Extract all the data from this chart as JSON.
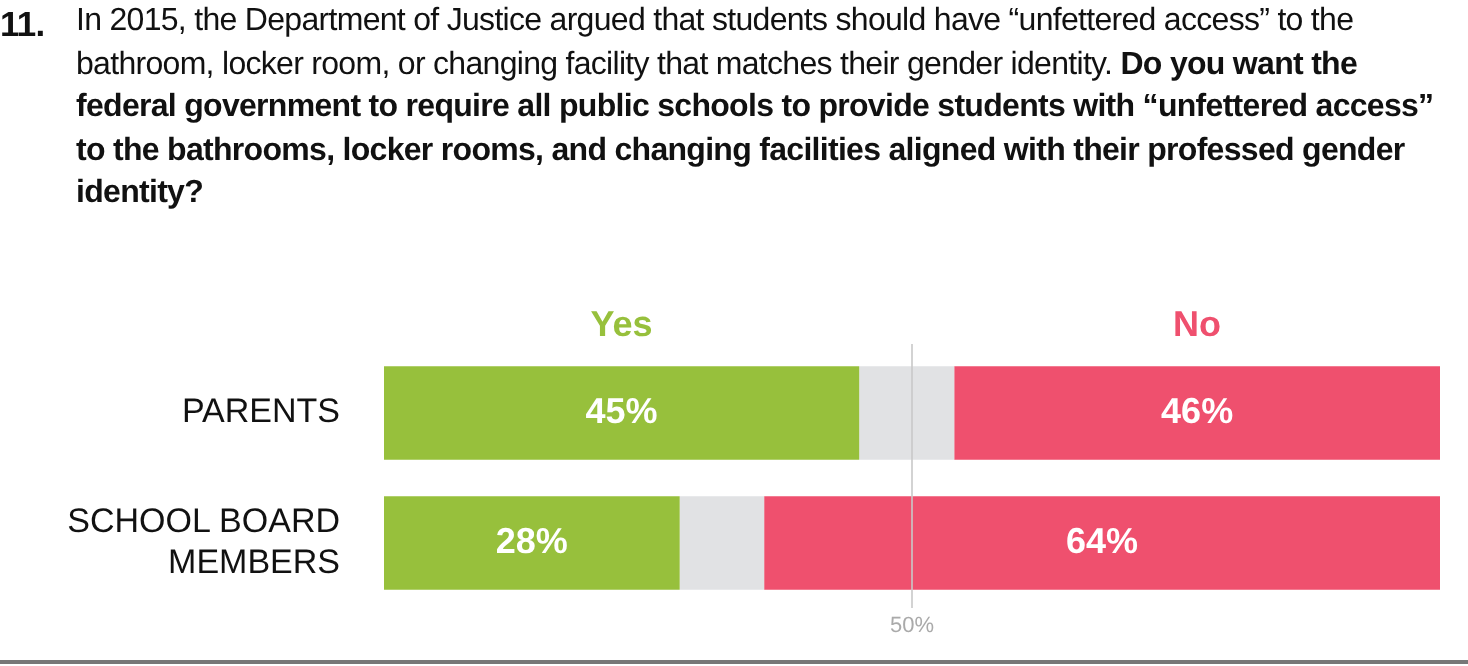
{
  "chart_data": {
    "type": "bar",
    "orientation": "horizontal",
    "stacked": true,
    "title": "11. In 2015, the Department of Justice argued that students should have “unfettered access” to the bathroom, locker room, or changing facility that matches their gender identity.",
    "subtitle": "Do you want the federal government to require all public schools to provide students with “unfettered access” to the bathrooms, locker rooms, and changing facilities aligned with their professed gender identity?",
    "categories": [
      "PARENTS",
      "SCHOOL BOARD MEMBERS"
    ],
    "series": [
      {
        "name": "Yes",
        "color": "#97c03c",
        "values": [
          45,
          28
        ],
        "value_labels": [
          "45%",
          "28%"
        ]
      },
      {
        "color": "#e1e2e4",
        "values": [
          9,
          8
        ]
      },
      {
        "name": "No",
        "color": "#ef506e",
        "values": [
          46,
          64
        ],
        "value_labels": [
          "46%",
          "64%"
        ]
      }
    ],
    "xlim": [
      0,
      100
    ],
    "tick_labels": "y",
    "legend": false,
    "ref_lines": [
      {
        "axis": "x",
        "value": 50,
        "label": "50%",
        "color": "#c8c8c8"
      }
    ]
  }
}
